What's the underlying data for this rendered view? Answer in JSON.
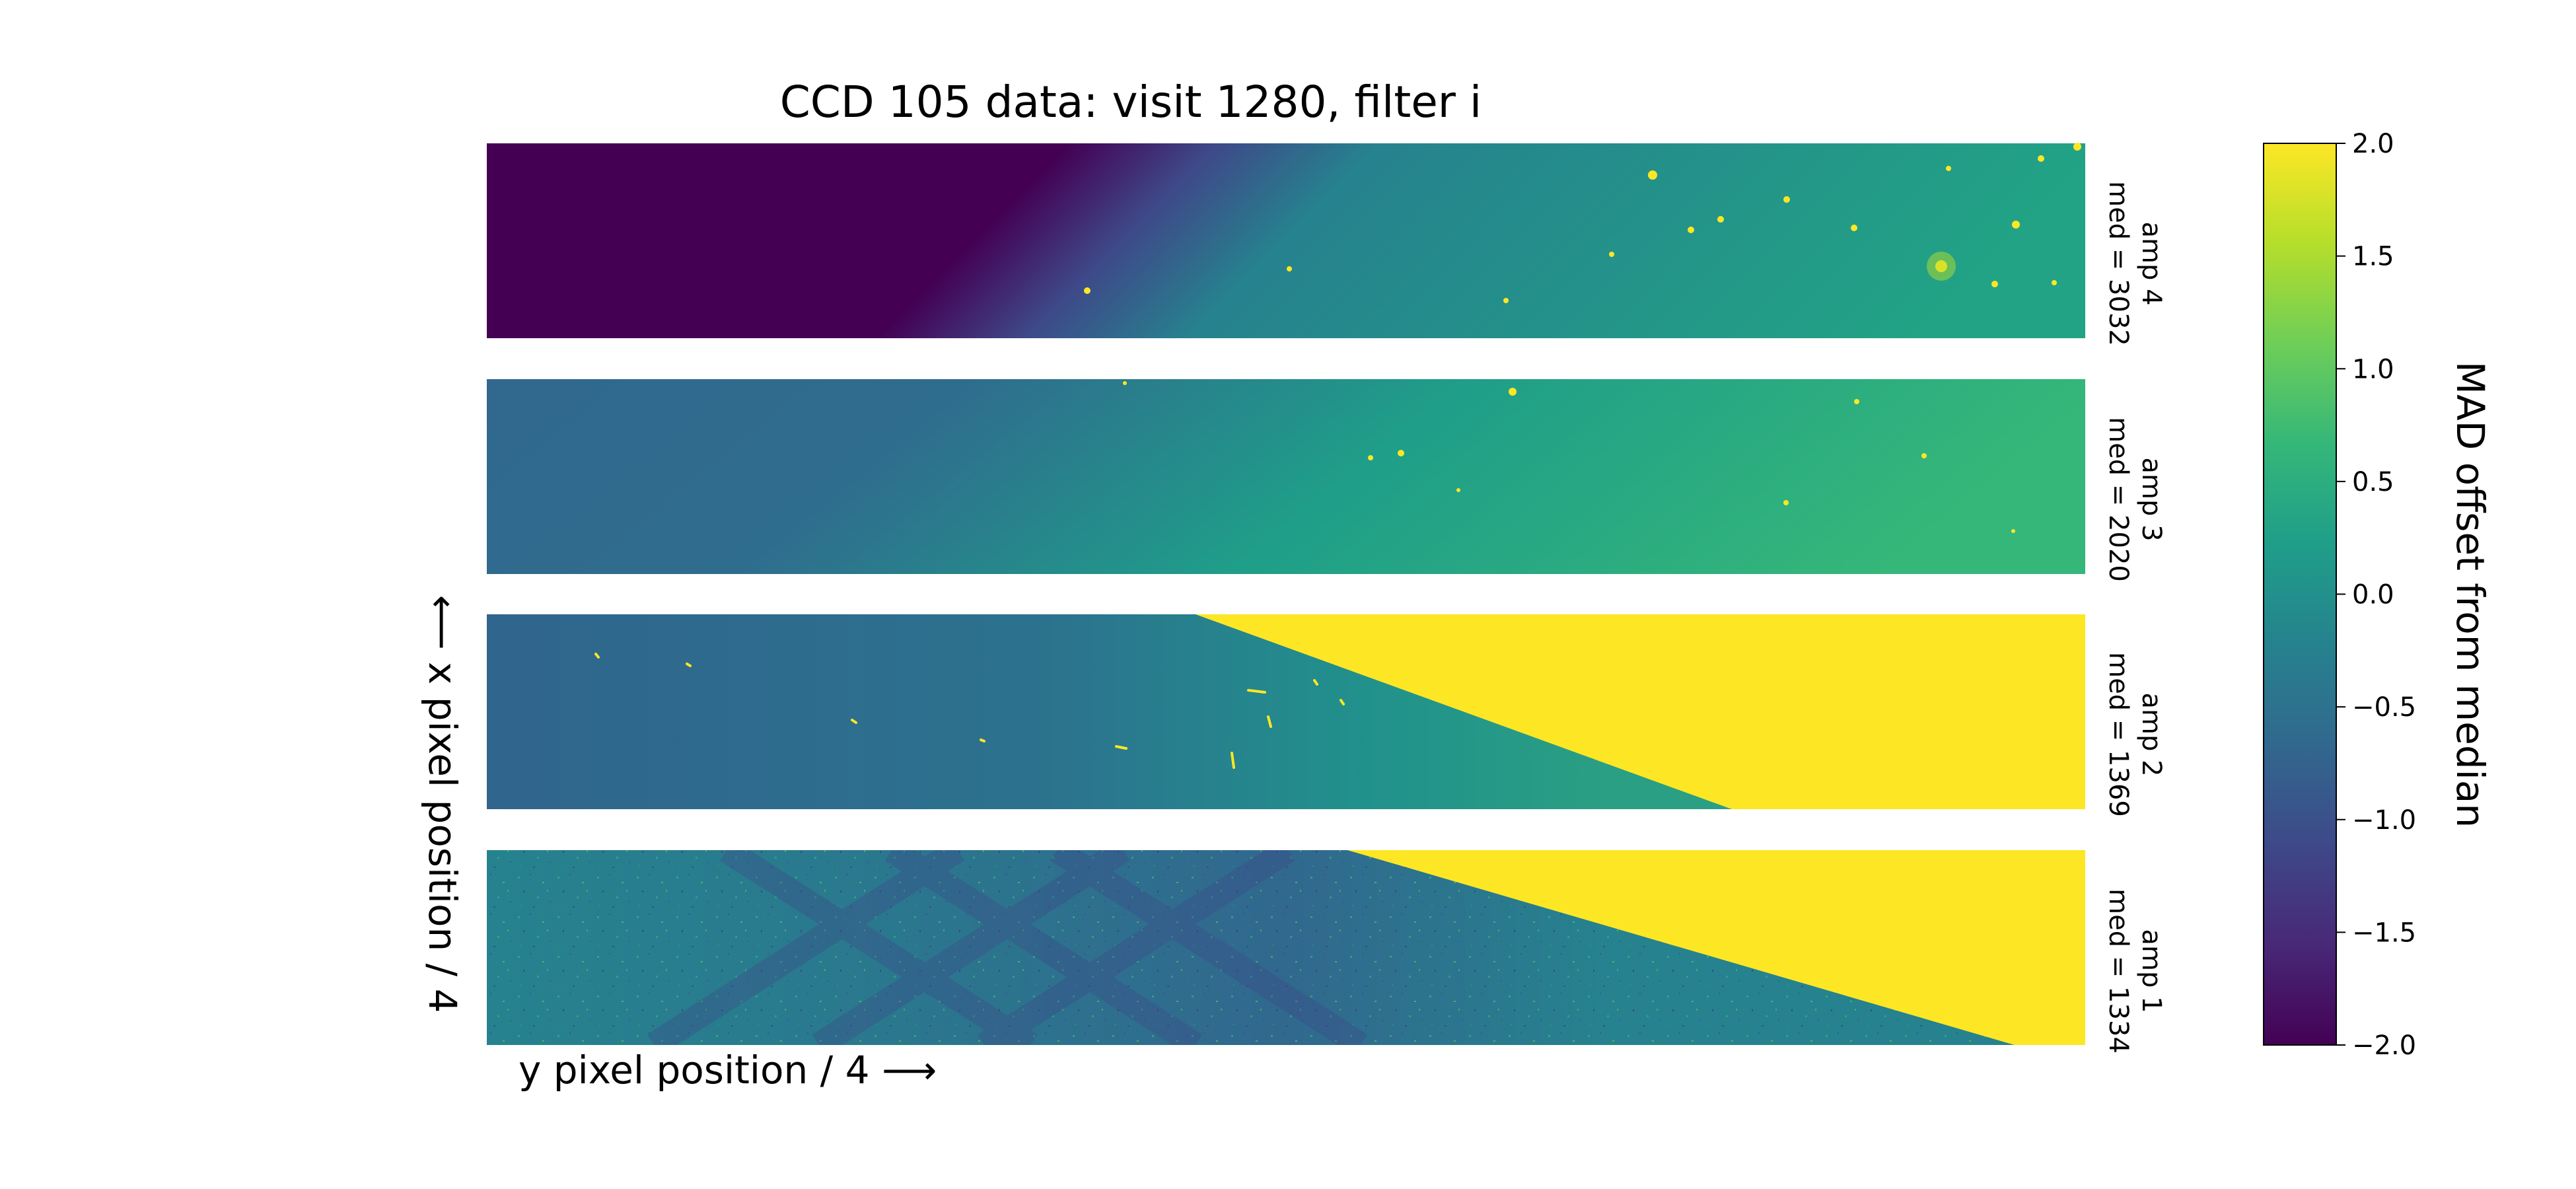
{
  "chart_data": {
    "type": "heatmap",
    "title": "CCD 105 data: visit 1280, filter i",
    "xlabel": "y pixel position / 4 ⟶",
    "ylabel": "⟵ x pixel position / 4",
    "colorbar": {
      "label": "MAD offset from median",
      "range": [
        -2.0,
        2.0
      ],
      "ticks": [
        2.0,
        1.5,
        1.0,
        0.5,
        0.0,
        -0.5,
        -1.0,
        -1.5,
        -2.0
      ],
      "tick_labels": [
        "2.0",
        "1.5",
        "1.0",
        "0.5",
        "0.0",
        "−0.5",
        "−1.0",
        "−1.5",
        "−2.0"
      ],
      "colormap": "viridis",
      "colors": [
        "#440154",
        "#482878",
        "#3e4989",
        "#31688e",
        "#26828e",
        "#1f9e89",
        "#35b779",
        "#6ece58",
        "#b5de2b",
        "#fde725"
      ]
    },
    "panels": [
      {
        "amp_label": "amp 4",
        "median_label": "med = 3032",
        "median": 3032
      },
      {
        "amp_label": "amp 3",
        "median_label": "med = 2020",
        "median": 2020
      },
      {
        "amp_label": "amp 2",
        "median_label": "med = 1369",
        "median": 1369
      },
      {
        "amp_label": "amp 1",
        "median_label": "med = 1334",
        "median": 1334
      }
    ]
  }
}
